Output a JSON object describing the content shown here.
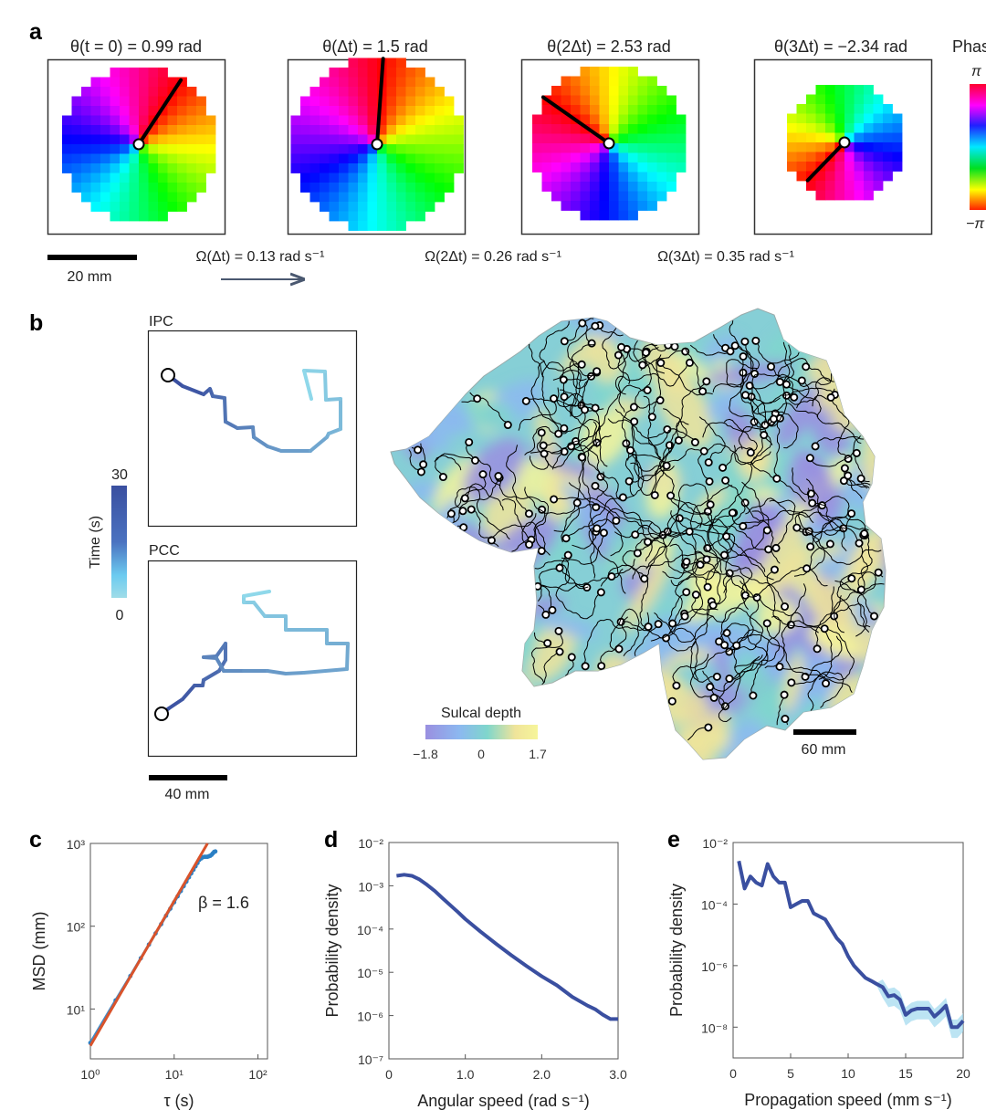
{
  "panel_labels": {
    "a": "a",
    "b": "b",
    "c": "c",
    "d": "d",
    "e": "e"
  },
  "panel_a": {
    "frames": [
      {
        "title": "θ(t = 0) = 0.99 rad",
        "theta": 0.99
      },
      {
        "title": "θ(Δt) = 1.5 rad",
        "theta": 1.5
      },
      {
        "title": "θ(2Δt) = 2.53 rad",
        "theta": 2.53
      },
      {
        "title": "θ(3Δt) = −2.34 rad",
        "theta": -2.34
      }
    ],
    "angular_velocities": [
      "Ω(Δt) = 0.13 rad s⁻¹",
      "Ω(2Δt) = 0.26 rad s⁻¹",
      "Ω(3Δt) = 0.35 rad s⁻¹"
    ],
    "scale_bar": "20 mm",
    "phase_colorbar": {
      "title": "Phase",
      "max": "π",
      "min": "−π"
    }
  },
  "panel_b": {
    "ipc_label": "IPC",
    "pcc_label": "PCC",
    "time_colorbar": {
      "label": "Time (s)",
      "max": "30",
      "min": "0",
      "colors": [
        "#3a4fa0",
        "#8fd8ea"
      ]
    },
    "scale_bar_small": "40 mm",
    "sulcal_depth": {
      "title": "Sulcal depth",
      "ticks": [
        "−1.8",
        "0",
        "1.7"
      ],
      "colors": [
        "#9a8fe0",
        "#8cb8f0",
        "#7fd6cc",
        "#f0e49a",
        "#f6f59a"
      ]
    },
    "scale_bar_map": "60 mm"
  },
  "chart_data": [
    {
      "panel": "c",
      "type": "scatter",
      "xscale": "log",
      "yscale": "log",
      "xlim": [
        1,
        130
      ],
      "ylim": [
        2.5,
        1000
      ],
      "xlabel": "τ (s)",
      "ylabel": "MSD (mm)",
      "xticks": [
        1,
        10,
        100
      ],
      "xtick_labels": [
        "10⁰",
        "10¹",
        "10²"
      ],
      "yticks": [
        10,
        100,
        1000
      ],
      "ytick_labels": [
        "10¹",
        "10²",
        "10³"
      ],
      "annotation": "β = 1.6",
      "series": [
        {
          "kind": "points",
          "color": "#2a7fc4",
          "x": [
            1,
            2,
            3,
            4,
            5,
            6,
            7,
            8,
            9,
            10,
            11,
            12,
            13,
            14,
            15,
            16,
            17,
            18,
            19,
            20,
            21,
            22,
            23,
            24,
            25,
            26,
            27,
            28,
            29,
            30,
            31
          ],
          "y": [
            3.9,
            12.7,
            25,
            41,
            60,
            82,
            106,
            134,
            163,
            195,
            230,
            266,
            305,
            346,
            390,
            435,
            481,
            530,
            581,
            635,
            660,
            680,
            690,
            690,
            690,
            700,
            710,
            730,
            760,
            790,
            800
          ]
        },
        {
          "kind": "fit",
          "color": "#d9532b",
          "x": [
            1,
            25
          ],
          "y": [
            3.6,
            1000
          ]
        }
      ]
    },
    {
      "panel": "d",
      "type": "line",
      "xscale": "linear",
      "yscale": "log",
      "xlim": [
        0,
        3
      ],
      "ylim": [
        1e-07,
        0.01
      ],
      "xlabel": "Angular speed (rad s⁻¹)",
      "ylabel": "Probability density",
      "xticks": [
        0,
        1,
        2,
        3
      ],
      "xtick_labels": [
        "0",
        "1.0",
        "2.0",
        "3.0"
      ],
      "yticks": [
        0.01,
        0.001,
        0.0001,
        1e-05,
        1e-06,
        1e-07
      ],
      "ytick_labels": [
        "10⁻²",
        "10⁻³",
        "10⁻⁴",
        "10⁻⁵",
        "10⁻⁶",
        "10⁻⁷"
      ],
      "series": [
        {
          "color": "#3a4fa0",
          "x": [
            0.1,
            0.2,
            0.3,
            0.4,
            0.5,
            0.6,
            0.7,
            0.8,
            0.9,
            1.0,
            1.2,
            1.4,
            1.6,
            1.8,
            2.0,
            2.2,
            2.4,
            2.6,
            2.7,
            2.8,
            2.9,
            3.0
          ],
          "y": [
            0.0017,
            0.0018,
            0.0017,
            0.0014,
            0.00105,
            0.00076,
            0.00052,
            0.00036,
            0.00025,
            0.00017,
            8.7e-05,
            4.6e-05,
            2.5e-05,
            1.4e-05,
            8.1e-06,
            5e-06,
            2.7e-06,
            1.7e-06,
            1.4e-06,
            1.05e-06,
            8.3e-07,
            8.3e-07
          ]
        }
      ]
    },
    {
      "panel": "e",
      "type": "line",
      "xscale": "linear",
      "yscale": "log",
      "xlim": [
        0,
        20
      ],
      "ylim": [
        1e-09,
        0.01
      ],
      "xlabel": "Propagation speed (mm s⁻¹)",
      "ylabel": "Probability density",
      "xticks": [
        0,
        5,
        10,
        15,
        20
      ],
      "xtick_labels": [
        "0",
        "5",
        "10",
        "15",
        "20"
      ],
      "yticks": [
        0.01,
        0.0001,
        1e-06,
        1e-08
      ],
      "ytick_labels": [
        "10⁻²",
        "10⁻⁴",
        "10⁻⁶",
        "10⁻⁸"
      ],
      "series": [
        {
          "color": "#3a4fa0",
          "band_color": "#9fd8ee",
          "x": [
            0.5,
            1,
            1.5,
            2,
            2.5,
            3,
            3.5,
            4,
            4.5,
            5,
            5.5,
            6,
            6.5,
            7,
            7.5,
            8,
            8.5,
            9,
            9.5,
            10,
            10.5,
            11,
            11.5,
            12,
            12.5,
            13,
            13.5,
            14,
            14.5,
            15,
            15.5,
            16,
            16.5,
            17,
            17.5,
            18,
            18.5,
            19,
            19.5,
            20
          ],
          "y": [
            0.0025,
            0.00032,
            0.00079,
            0.0005,
            0.0004,
            0.002,
            0.00079,
            0.0005,
            0.0005,
            7.9e-05,
            0.0001,
            0.000126,
            0.000126,
            5e-05,
            4e-05,
            3.2e-05,
            1.6e-05,
            7.9e-06,
            5e-06,
            2e-06,
            1e-06,
            6.3e-07,
            4e-07,
            3.2e-07,
            2.5e-07,
            2e-07,
            1e-07,
            1.1e-07,
            7.9e-08,
            2.5e-08,
            3.5e-08,
            4e-08,
            4e-08,
            4e-08,
            2.2e-08,
            3.2e-08,
            5e-08,
            1e-08,
            1e-08,
            1.6e-08
          ]
        }
      ]
    }
  ]
}
